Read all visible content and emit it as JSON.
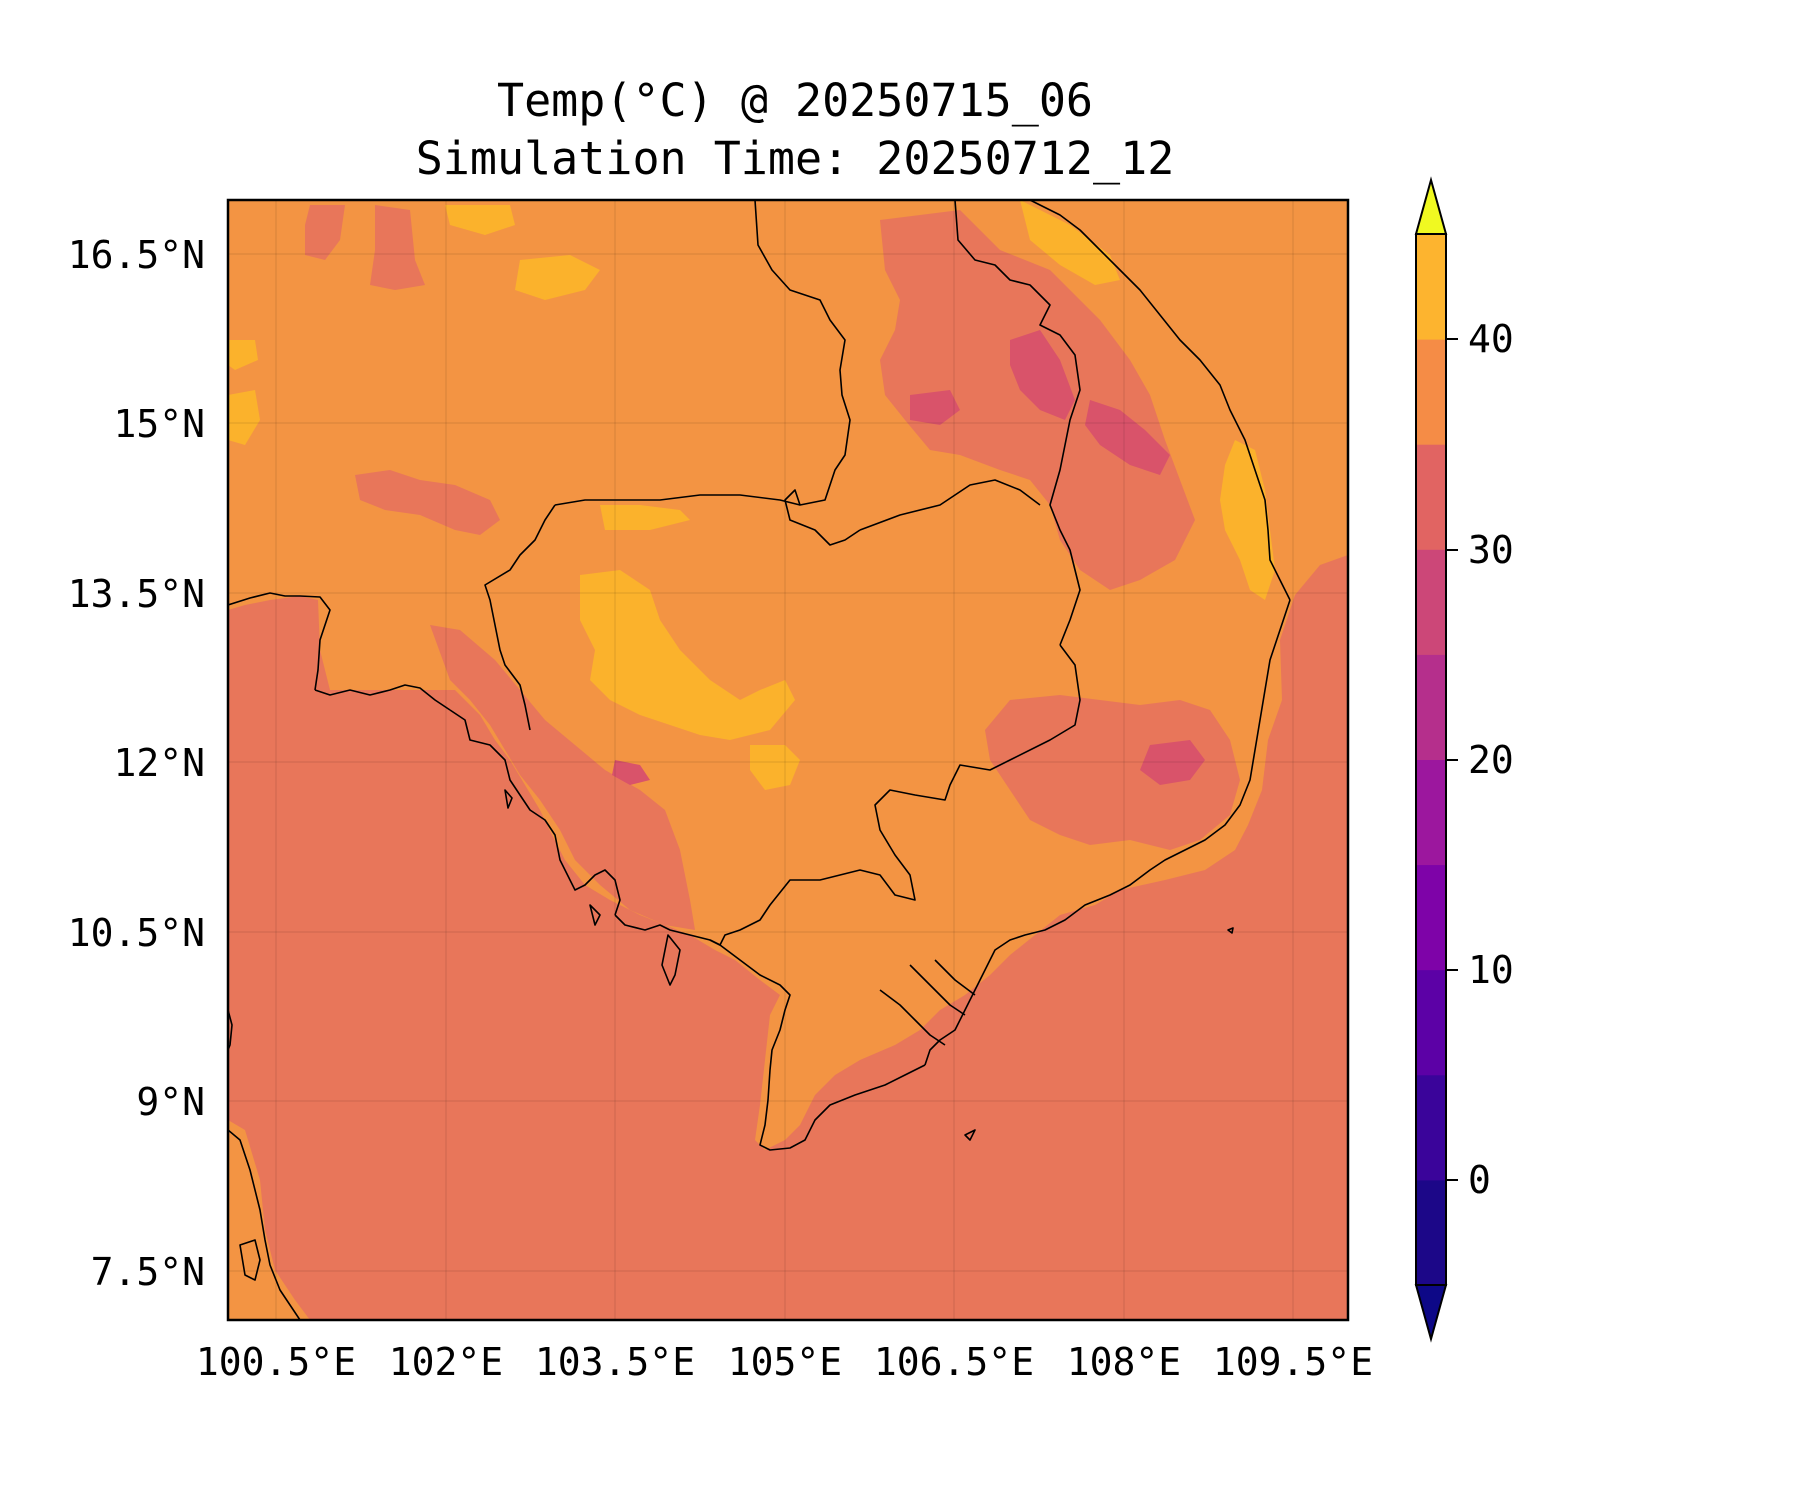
{
  "title": {
    "line1": "Temp(°C) @ 20250715_06",
    "line2": "Simulation Time: 20250712_12"
  },
  "map": {
    "region": "Cambodia, southern Laos, southern Vietnam, eastern Thailand, Gulf of Thailand",
    "lon_range": [
      100.0,
      110.0
    ],
    "lat_range": [
      7.0,
      17.0
    ],
    "lon_ticks": [
      "100.5°E",
      "102°E",
      "103.5°E",
      "105°E",
      "106.5°E",
      "108°E",
      "109.5°E"
    ],
    "lat_ticks": [
      "16.5°N",
      "15°N",
      "13.5°N",
      "12°N",
      "10.5°N",
      "9°N",
      "7.5°N"
    ],
    "gridlines": true
  },
  "colorbar": {
    "ticks": [
      "40",
      "30",
      "20",
      "10",
      "0"
    ],
    "levels": [
      -5,
      0,
      5,
      10,
      15,
      20,
      25,
      30,
      35,
      40,
      45
    ],
    "extend": "both",
    "colors": [
      "#1c0788",
      "#3a049a",
      "#5c01a6",
      "#7e03a8",
      "#9c179e",
      "#b52f8c",
      "#cc4778",
      "#e16462",
      "#f58c46",
      "#fdb42f",
      "#f0f921"
    ],
    "under_color": "#0d0887",
    "over_color": "#f0f921"
  },
  "colors": {
    "level_25_30": "#e8765a",
    "level_30_35": "#f39443",
    "level_35_40": "#fbb22c",
    "level_20_25": "#d9536a"
  }
}
